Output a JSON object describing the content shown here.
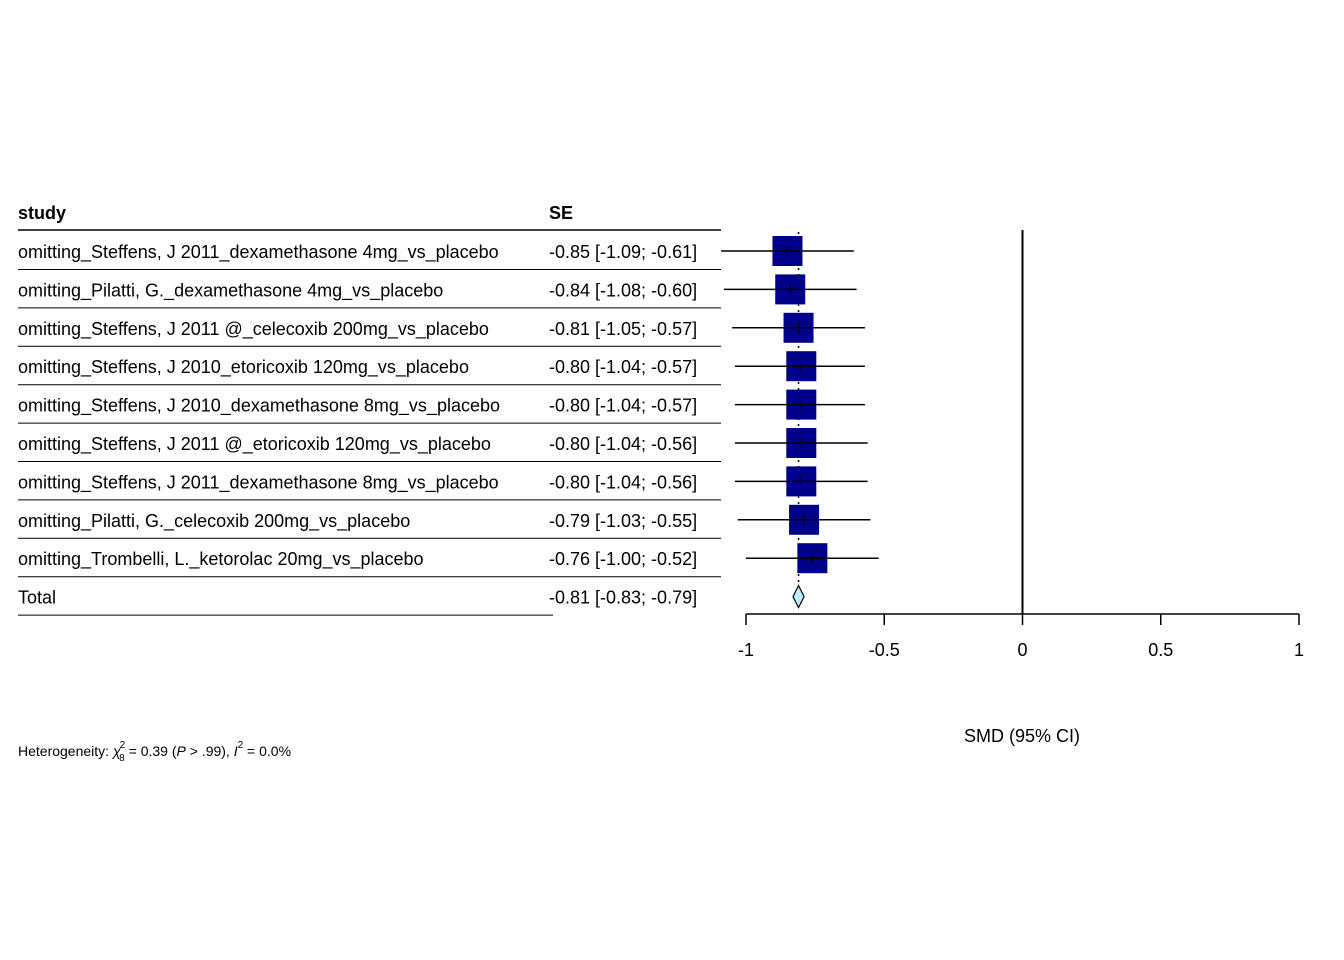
{
  "chart_data": {
    "type": "forest",
    "columns": {
      "study": "study",
      "se": "SE"
    },
    "rows": [
      {
        "study": "omitting_Steffens, J 2011_dexamethasone 4mg_vs_placebo",
        "ci_text": "-0.85 [-1.09; -0.61]",
        "est": -0.85,
        "lo": -1.09,
        "hi": -0.61
      },
      {
        "study": "omitting_Pilatti, G._dexamethasone 4mg_vs_placebo",
        "ci_text": "-0.84 [-1.08; -0.60]",
        "est": -0.84,
        "lo": -1.08,
        "hi": -0.6
      },
      {
        "study": "omitting_Steffens, J 2011 @_celecoxib 200mg_vs_placebo",
        "ci_text": "-0.81 [-1.05; -0.57]",
        "est": -0.81,
        "lo": -1.05,
        "hi": -0.57
      },
      {
        "study": "omitting_Steffens, J 2010_etoricoxib 120mg_vs_placebo",
        "ci_text": "-0.80 [-1.04; -0.57]",
        "est": -0.8,
        "lo": -1.04,
        "hi": -0.57
      },
      {
        "study": "omitting_Steffens, J 2010_dexamethasone 8mg_vs_placebo",
        "ci_text": "-0.80 [-1.04; -0.57]",
        "est": -0.8,
        "lo": -1.04,
        "hi": -0.57
      },
      {
        "study": "omitting_Steffens, J 2011 @_etoricoxib 120mg_vs_placebo",
        "ci_text": "-0.80 [-1.04; -0.56]",
        "est": -0.8,
        "lo": -1.04,
        "hi": -0.56
      },
      {
        "study": "omitting_Steffens, J 2011_dexamethasone 8mg_vs_placebo",
        "ci_text": "-0.80 [-1.04; -0.56]",
        "est": -0.8,
        "lo": -1.04,
        "hi": -0.56
      },
      {
        "study": "omitting_Pilatti, G._celecoxib 200mg_vs_placebo",
        "ci_text": "-0.79 [-1.03; -0.55]",
        "est": -0.79,
        "lo": -1.03,
        "hi": -0.55
      },
      {
        "study": "omitting_Trombelli, L._ketorolac 20mg_vs_placebo",
        "ci_text": "-0.76 [-1.00; -0.52]",
        "est": -0.76,
        "lo": -1.0,
        "hi": -0.52
      }
    ],
    "total": {
      "study": "Total",
      "ci_text": "-0.81 [-0.83; -0.79]",
      "est": -0.81,
      "lo": -0.83,
      "hi": -0.79
    },
    "x_ticks": [
      -1,
      -0.5,
      0,
      0.5,
      1
    ],
    "xlim": [
      -1,
      1
    ],
    "null_line": 0,
    "xlabel": "SMD (95% CI)",
    "heterogeneity": {
      "prefix": "Heterogeneity: ",
      "chi_symbol": "χ",
      "chi_sup": "2",
      "chi_sub": "8",
      "chi_value": " = 0.39 (",
      "p_symbol": "P",
      "p_value": " > .99), ",
      "i_symbol": "I",
      "i_sup": "2",
      "i_value": " = 0.0%"
    },
    "colors": {
      "square": "#00008B",
      "diamond": "#BFEFFF",
      "line": "#000000"
    }
  }
}
